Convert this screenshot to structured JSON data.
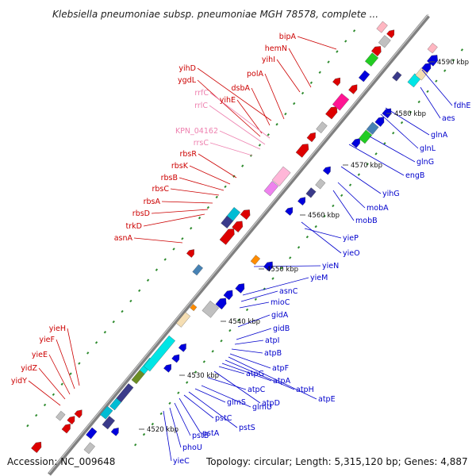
{
  "title": "Klebsiella pneumoniae subsp. pneumoniae MGH 78578, complete ...",
  "footer": {
    "accession": "Accession: NC_009648",
    "topology": "Topology: circular; Length: 5,315,120 bp; Genes: 4,887"
  },
  "colors": {
    "forward_label": "#cc0000",
    "reverse_label": "#0000cc",
    "rna_label": "#ee82b0",
    "backbone": "#808080",
    "tick": "#2e8b2e"
  },
  "kbp_marks": [
    "4520 kbp",
    "4530 kbp",
    "4540 kbp",
    "4550 kbp",
    "4560 kbp",
    "4570 kbp",
    "4580 kbp",
    "4590 kbp"
  ],
  "forward_labels": [
    "yieH",
    "yieF",
    "yieE",
    "yidZ",
    "yidY",
    "asnA",
    "trkD",
    "rbsD",
    "rbsA",
    "rbsC",
    "rbsB",
    "rbsK",
    "rbsR",
    "yihE",
    "dsbA",
    "polA",
    "yihI",
    "hemN",
    "bipA",
    "ygdL",
    "yihD"
  ],
  "rna_labels": [
    "rrsC",
    "KPN_04162",
    "rrlC",
    "rrfC"
  ],
  "reverse_labels": [
    "yieC",
    "phoU",
    "pstB",
    "pstA",
    "pstC",
    "pstS",
    "glmS",
    "glmU",
    "atpC",
    "atpD",
    "atpG",
    "atpA",
    "atpH",
    "atpE",
    "atpF",
    "atpB",
    "atpI",
    "gidB",
    "gidA",
    "mioC",
    "asnC",
    "yieM",
    "yieN",
    "yieO",
    "yieP",
    "mobB",
    "mobA",
    "yihG",
    "engB",
    "glnG",
    "glnL",
    "glnA",
    "aes",
    "fdhE"
  ]
}
